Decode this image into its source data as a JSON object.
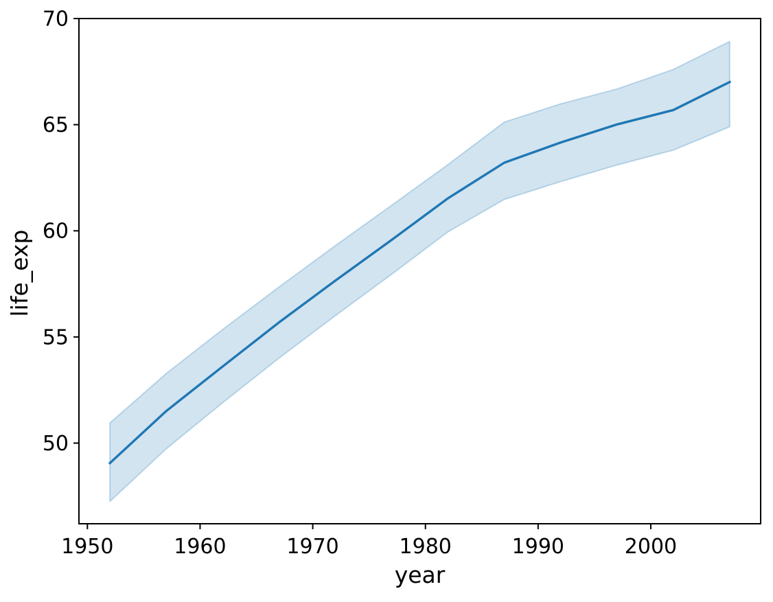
{
  "figure": {
    "background": "#ffffff"
  },
  "chart_data": {
    "type": "line",
    "title": "",
    "xlabel": "year",
    "ylabel": "life_exp",
    "x": [
      1952,
      1957,
      1962,
      1967,
      1972,
      1977,
      1982,
      1987,
      1992,
      1997,
      2002,
      2007
    ],
    "series": [
      {
        "name": "life_exp",
        "color": "#1f77b4",
        "values": [
          49.06,
          51.51,
          53.61,
          55.68,
          57.65,
          59.57,
          61.53,
          63.21,
          64.16,
          65.01,
          65.69,
          67.01
        ]
      }
    ],
    "ci_band": {
      "name": "95% confidence interval",
      "lower": [
        47.25,
        49.73,
        51.9,
        54.0,
        56.0,
        57.95,
        59.95,
        61.48,
        62.32,
        63.1,
        63.8,
        64.9
      ],
      "upper": [
        50.95,
        53.28,
        55.35,
        57.35,
        59.3,
        61.2,
        63.12,
        65.12,
        65.98,
        66.68,
        67.6,
        68.92
      ],
      "fill": "rgba(31,119,180,0.2)",
      "edge": "rgba(31,119,180,0.25)"
    },
    "xlim": [
      1949.25,
      2009.75
    ],
    "ylim": [
      46.2,
      70.0
    ],
    "xticks": [
      1950,
      1960,
      1970,
      1980,
      1990,
      2000
    ],
    "yticks": [
      50,
      55,
      60,
      65,
      70
    ],
    "grid": false,
    "legend": "none",
    "axis_color": "#000000",
    "line_width": 3.4
  }
}
